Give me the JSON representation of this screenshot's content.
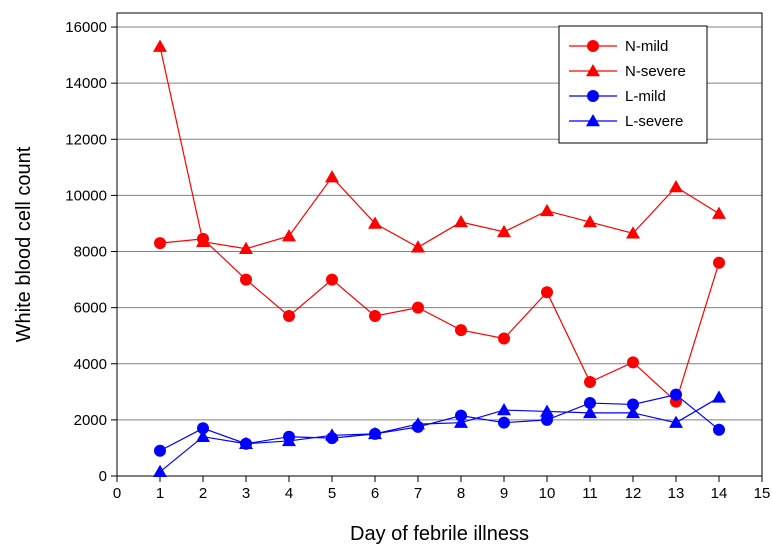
{
  "chart_data": {
    "type": "line",
    "xlabel": "Day of febrile illness",
    "ylabel": "White blood cell count",
    "xlim": [
      0,
      15
    ],
    "ylim": [
      0,
      16500
    ],
    "x_ticks": [
      0,
      1,
      2,
      3,
      4,
      5,
      6,
      7,
      8,
      9,
      10,
      11,
      12,
      13,
      14,
      15
    ],
    "y_ticks": [
      0,
      2000,
      4000,
      6000,
      8000,
      10000,
      12000,
      14000,
      16000
    ],
    "grid": "horizontal",
    "legend_position": "top-right",
    "series": [
      {
        "name": "N-mild",
        "color": "#ff0000",
        "marker": "circle",
        "x": [
          1,
          2,
          3,
          4,
          5,
          6,
          7,
          8,
          9,
          10,
          11,
          12,
          13,
          14
        ],
        "values": [
          8300,
          8450,
          7000,
          5700,
          7000,
          5700,
          6000,
          5200,
          4900,
          6550,
          3350,
          4050,
          2650,
          7600
        ]
      },
      {
        "name": "N-severe",
        "color": "#ff0000",
        "marker": "triangle",
        "x": [
          1,
          2,
          3,
          4,
          5,
          6,
          7,
          8,
          9,
          10,
          11,
          12,
          13,
          14
        ],
        "values": [
          15300,
          8350,
          8100,
          8550,
          10650,
          9000,
          8150,
          9050,
          8700,
          9450,
          9050,
          8650,
          10300,
          9350
        ]
      },
      {
        "name": "L-mild",
        "color": "#0000ff",
        "marker": "circle",
        "x": [
          1,
          2,
          3,
          4,
          5,
          6,
          7,
          8,
          9,
          10,
          11,
          12,
          13,
          14
        ],
        "values": [
          900,
          1700,
          1150,
          1400,
          1350,
          1500,
          1750,
          2150,
          1900,
          2000,
          2600,
          2550,
          2900,
          1650
        ]
      },
      {
        "name": "L-severe",
        "color": "#0000ff",
        "marker": "triangle",
        "x": [
          1,
          2,
          3,
          4,
          5,
          6,
          7,
          8,
          9,
          10,
          11,
          12,
          13,
          14
        ],
        "values": [
          150,
          1400,
          1150,
          1250,
          1450,
          1500,
          1850,
          1900,
          2350,
          2300,
          2250,
          2250,
          1900,
          2800
        ]
      }
    ]
  }
}
